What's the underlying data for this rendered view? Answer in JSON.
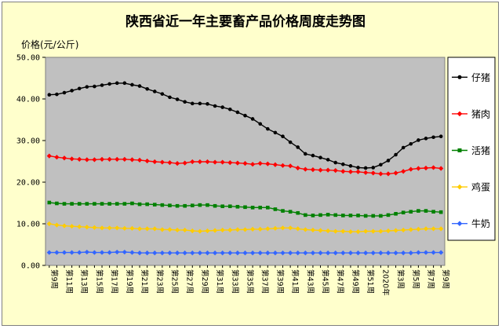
{
  "chart_data": {
    "type": "line",
    "title": "陕西省近一年主要畜产品价格周度走势图",
    "ylabel": "价格(元/公斤)",
    "xlabel": "",
    "ylim": [
      0,
      50
    ],
    "yticks": [
      "0.00",
      "10.00",
      "20.00",
      "30.00",
      "40.00",
      "50.00"
    ],
    "grid": false,
    "legend_position": "right",
    "plot_background": "#c0c0c0",
    "frame_background": "#ffffcc",
    "x": [
      "第9周",
      "第10周",
      "第11周",
      "第12周",
      "第13周",
      "第14周",
      "第15周",
      "第16周",
      "第17周",
      "第18周",
      "第19周",
      "第20周",
      "第21周",
      "第22周",
      "第23周",
      "第24周",
      "第25周",
      "第26周",
      "第27周",
      "第28周",
      "第29周",
      "第30周",
      "第31周",
      "第32周",
      "第33周",
      "第34周",
      "第35周",
      "第36周",
      "第37周",
      "第38周",
      "第39周",
      "第40周",
      "第41周",
      "第42周",
      "第43周",
      "第44周",
      "第45周",
      "第46周",
      "第47周",
      "第48周",
      "第49周",
      "第50周",
      "第51周",
      "第52周",
      "2020年",
      "第2周",
      "第3周",
      "第4周",
      "第5周",
      "第6周",
      "第7周",
      "第8周",
      "第9周"
    ],
    "x_labels_shown": [
      "第9周",
      "第11周",
      "第13周",
      "第15周",
      "第17周",
      "第19周",
      "第21周",
      "第23周",
      "第25周",
      "第27周",
      "第29周",
      "第31周",
      "第33周",
      "第35周",
      "第37周",
      "第39周",
      "第41周",
      "第43周",
      "第45周",
      "第47周",
      "第49周",
      "第51周",
      "2020年",
      "第3周",
      "第5周",
      "第7周",
      "第9周"
    ],
    "series": [
      {
        "name": "仔猪",
        "color": "#000000",
        "marker": "circle",
        "values": [
          41.0,
          41.1,
          41.5,
          42.0,
          42.5,
          42.9,
          43.0,
          43.3,
          43.6,
          43.8,
          43.8,
          43.4,
          43.1,
          42.4,
          41.8,
          41.2,
          40.4,
          39.9,
          39.3,
          38.9,
          38.9,
          38.8,
          38.3,
          38.0,
          37.5,
          36.8,
          36.0,
          35.2,
          34.0,
          32.8,
          31.9,
          31.0,
          29.6,
          28.4,
          26.8,
          26.4,
          25.9,
          25.4,
          24.7,
          24.3,
          23.9,
          23.5,
          23.4,
          23.5,
          24.2,
          25.2,
          26.6,
          28.3,
          29.2,
          30.1,
          30.5,
          30.8,
          31.0
        ]
      },
      {
        "name": "猪肉",
        "color": "#ff0000",
        "marker": "diamond",
        "values": [
          26.3,
          26.0,
          25.8,
          25.6,
          25.5,
          25.4,
          25.4,
          25.5,
          25.5,
          25.5,
          25.5,
          25.4,
          25.3,
          25.1,
          24.9,
          24.8,
          24.7,
          24.5,
          24.6,
          24.9,
          24.9,
          24.9,
          24.8,
          24.8,
          24.7,
          24.6,
          24.5,
          24.3,
          24.5,
          24.4,
          24.2,
          24.0,
          23.9,
          23.4,
          23.1,
          23.0,
          22.9,
          22.9,
          22.8,
          22.6,
          22.5,
          22.5,
          22.3,
          22.2,
          22.0,
          22.0,
          22.2,
          22.6,
          23.1,
          23.3,
          23.4,
          23.5,
          23.3
        ]
      },
      {
        "name": "活猪",
        "color": "#008000",
        "marker": "square",
        "values": [
          15.1,
          14.9,
          14.8,
          14.8,
          14.8,
          14.8,
          14.8,
          14.8,
          14.8,
          14.8,
          14.8,
          14.9,
          14.7,
          14.7,
          14.6,
          14.5,
          14.4,
          14.3,
          14.3,
          14.4,
          14.5,
          14.5,
          14.3,
          14.2,
          14.2,
          14.1,
          14.0,
          13.9,
          13.9,
          13.9,
          13.5,
          13.1,
          12.9,
          12.6,
          12.1,
          12.0,
          12.1,
          12.2,
          12.1,
          12.0,
          12.0,
          12.0,
          11.9,
          11.9,
          11.9,
          12.1,
          12.4,
          12.7,
          12.9,
          13.1,
          13.1,
          12.9,
          12.8
        ]
      },
      {
        "name": "鸡蛋",
        "color": "#ffcc00",
        "marker": "diamond",
        "values": [
          10.0,
          9.7,
          9.5,
          9.4,
          9.3,
          9.2,
          9.1,
          9.0,
          9.0,
          9.0,
          8.9,
          8.9,
          8.8,
          8.8,
          8.8,
          8.6,
          8.6,
          8.5,
          8.5,
          8.3,
          8.2,
          8.3,
          8.4,
          8.5,
          8.5,
          8.6,
          8.6,
          8.7,
          8.7,
          8.8,
          8.9,
          9.0,
          9.0,
          8.8,
          8.6,
          8.5,
          8.4,
          8.3,
          8.2,
          8.2,
          8.1,
          8.1,
          8.2,
          8.2,
          8.2,
          8.3,
          8.4,
          8.5,
          8.6,
          8.7,
          8.8,
          8.8,
          8.8
        ]
      },
      {
        "name": "牛奶",
        "color": "#3366ff",
        "marker": "diamond",
        "values": [
          3.1,
          3.1,
          3.1,
          3.1,
          3.1,
          3.2,
          3.1,
          3.1,
          3.1,
          3.2,
          3.2,
          3.1,
          3.0,
          3.0,
          3.0,
          3.0,
          3.0,
          3.0,
          3.0,
          3.0,
          3.0,
          3.0,
          3.0,
          3.0,
          3.0,
          3.0,
          3.0,
          3.0,
          3.0,
          3.0,
          3.0,
          3.0,
          3.0,
          3.0,
          3.0,
          3.0,
          3.0,
          3.0,
          3.0,
          3.0,
          3.0,
          3.0,
          3.0,
          3.0,
          3.0,
          3.0,
          3.0,
          3.0,
          3.0,
          3.1,
          3.1,
          3.1,
          3.1
        ]
      }
    ]
  }
}
